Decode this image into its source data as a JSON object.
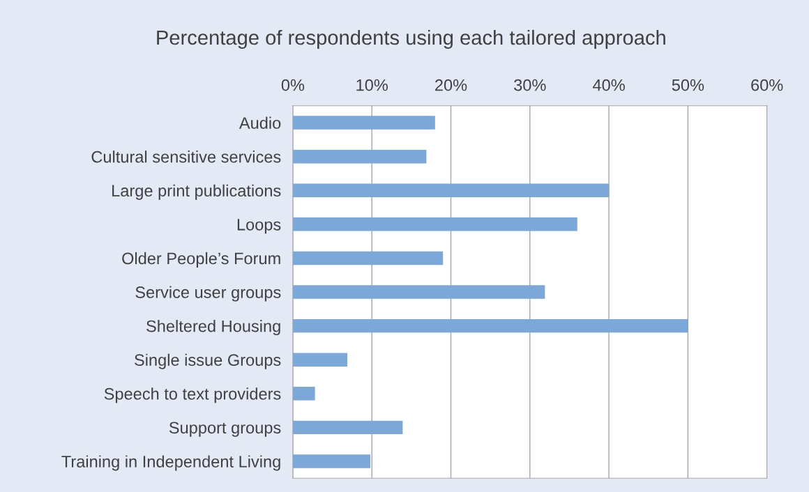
{
  "chart_data": {
    "type": "bar",
    "orientation": "horizontal",
    "title": "Percentage of respondents using each tailored approach",
    "categories": [
      "Audio",
      "Cultural sensitive services",
      "Large print publications",
      "Loops",
      "Older People’s Forum",
      "Service user groups",
      "Sheltered Housing",
      "Single issue Groups",
      "Speech to text providers",
      "Support groups",
      "Training in Independent Living"
    ],
    "values": [
      18,
      16.9,
      40,
      36,
      19,
      31.9,
      50,
      6.9,
      2.8,
      13.9,
      9.8
    ],
    "color": "#7ba7d9",
    "xlim": [
      0,
      60
    ],
    "xticks": [
      {
        "value": 0,
        "label": "0%"
      },
      {
        "value": 10,
        "label": "10%"
      },
      {
        "value": 20,
        "label": "20%"
      },
      {
        "value": 30,
        "label": "30%"
      },
      {
        "value": 40,
        "label": "40%"
      },
      {
        "value": 50,
        "label": "50%"
      },
      {
        "value": 60,
        "label": "60%"
      }
    ],
    "grid": "x"
  }
}
